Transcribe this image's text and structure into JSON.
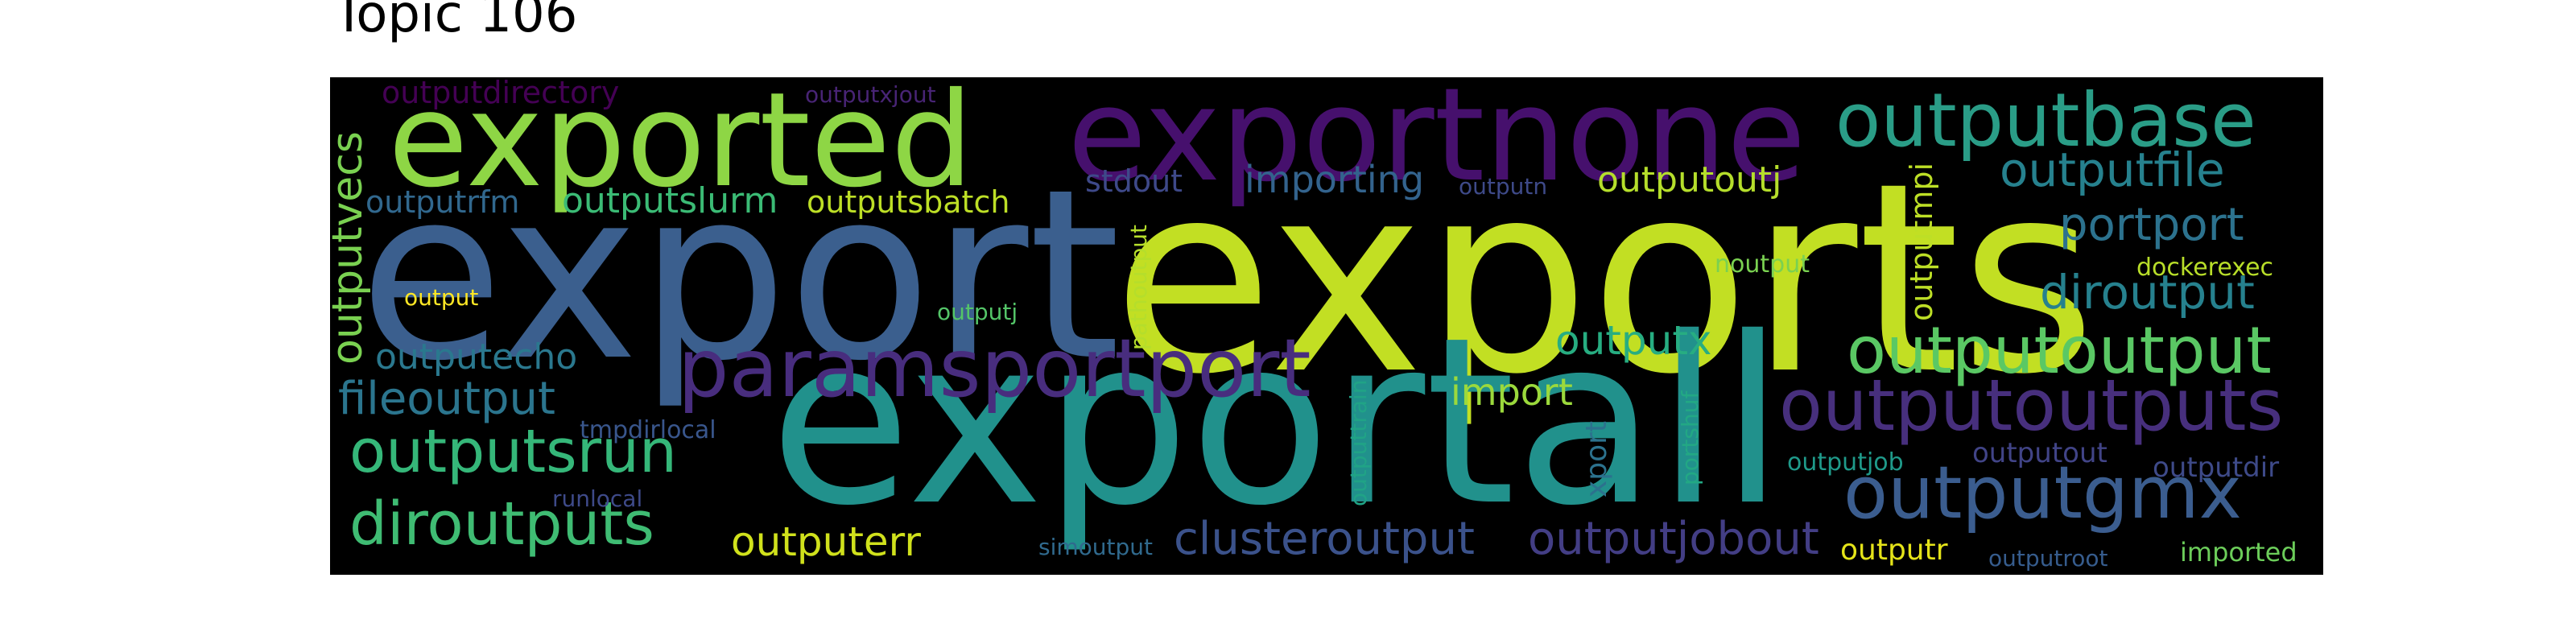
{
  "title": "Topic 106",
  "words": [
    {
      "text": "exports",
      "color": "#c2df23"
    },
    {
      "text": "export",
      "color": "#3b5f8e"
    },
    {
      "text": "exportall",
      "color": "#21918c"
    },
    {
      "text": "exportnone",
      "color": "#46106d"
    },
    {
      "text": "exported",
      "color": "#8ed645"
    },
    {
      "text": "outputbase",
      "color": "#2a9d87"
    },
    {
      "text": "paramsportport",
      "color": "#482d7e"
    },
    {
      "text": "outputoutputs",
      "color": "#472f7d"
    },
    {
      "text": "outputgmx",
      "color": "#3b5d8f"
    },
    {
      "text": "outputoutput",
      "color": "#5ac864"
    },
    {
      "text": "outputsrun",
      "color": "#35b779"
    },
    {
      "text": "diroutputs",
      "color": "#3fbc73"
    },
    {
      "text": "outputfile",
      "color": "#26818e"
    },
    {
      "text": "portport",
      "color": "#2c728e"
    },
    {
      "text": "diroutput",
      "color": "#26818e"
    },
    {
      "text": "clusteroutput",
      "color": "#3b528b"
    },
    {
      "text": "outputjobout",
      "color": "#433e85"
    },
    {
      "text": "fileoutput",
      "color": "#2b758e"
    },
    {
      "text": "outputx",
      "color": "#27ad81"
    },
    {
      "text": "outputerr",
      "color": "#d0e11c"
    },
    {
      "text": "outputvecs",
      "color": "#7ad151"
    },
    {
      "text": "import",
      "color": "#9bd93c"
    },
    {
      "text": "importing",
      "color": "#33638d"
    },
    {
      "text": "outputoutj",
      "color": "#b5de2b"
    },
    {
      "text": "outputslurm",
      "color": "#3bbb75"
    },
    {
      "text": "outputsbatch",
      "color": "#bddf26"
    },
    {
      "text": "outputecho",
      "color": "#2a788e"
    },
    {
      "text": "outputdirectory",
      "color": "#440154"
    },
    {
      "text": "outputrfm",
      "color": "#31688e"
    },
    {
      "text": "stdout",
      "color": "#3e4989"
    },
    {
      "text": "outputmpi",
      "color": "#bddf26"
    },
    {
      "text": "outputr",
      "color": "#e5e419"
    },
    {
      "text": "outputdir",
      "color": "#3e4a89"
    },
    {
      "text": "outputout",
      "color": "#414487"
    },
    {
      "text": "outputjob",
      "color": "#1f9a8a"
    },
    {
      "text": "noutput",
      "color": "#7ad151"
    },
    {
      "text": "dockerexec",
      "color": "#b8de29"
    },
    {
      "text": "imported",
      "color": "#6ccd5a"
    },
    {
      "text": "outputroot",
      "color": "#365c8d"
    },
    {
      "text": "pathoutput",
      "color": "#b5de2b"
    },
    {
      "text": "outputtrain",
      "color": "#20a386"
    },
    {
      "text": "portshuf",
      "color": "#22a884"
    },
    {
      "text": "xport",
      "color": "#2c728e"
    },
    {
      "text": "outputj",
      "color": "#54c568"
    },
    {
      "text": "output",
      "color": "#fde725"
    },
    {
      "text": "tmpdirlocal",
      "color": "#39568c"
    },
    {
      "text": "runlocal",
      "color": "#3e4a89"
    },
    {
      "text": "simoutput",
      "color": "#306a8e"
    },
    {
      "text": "outputxjout",
      "color": "#482475"
    },
    {
      "text": "outputn",
      "color": "#3e4a89"
    }
  ]
}
